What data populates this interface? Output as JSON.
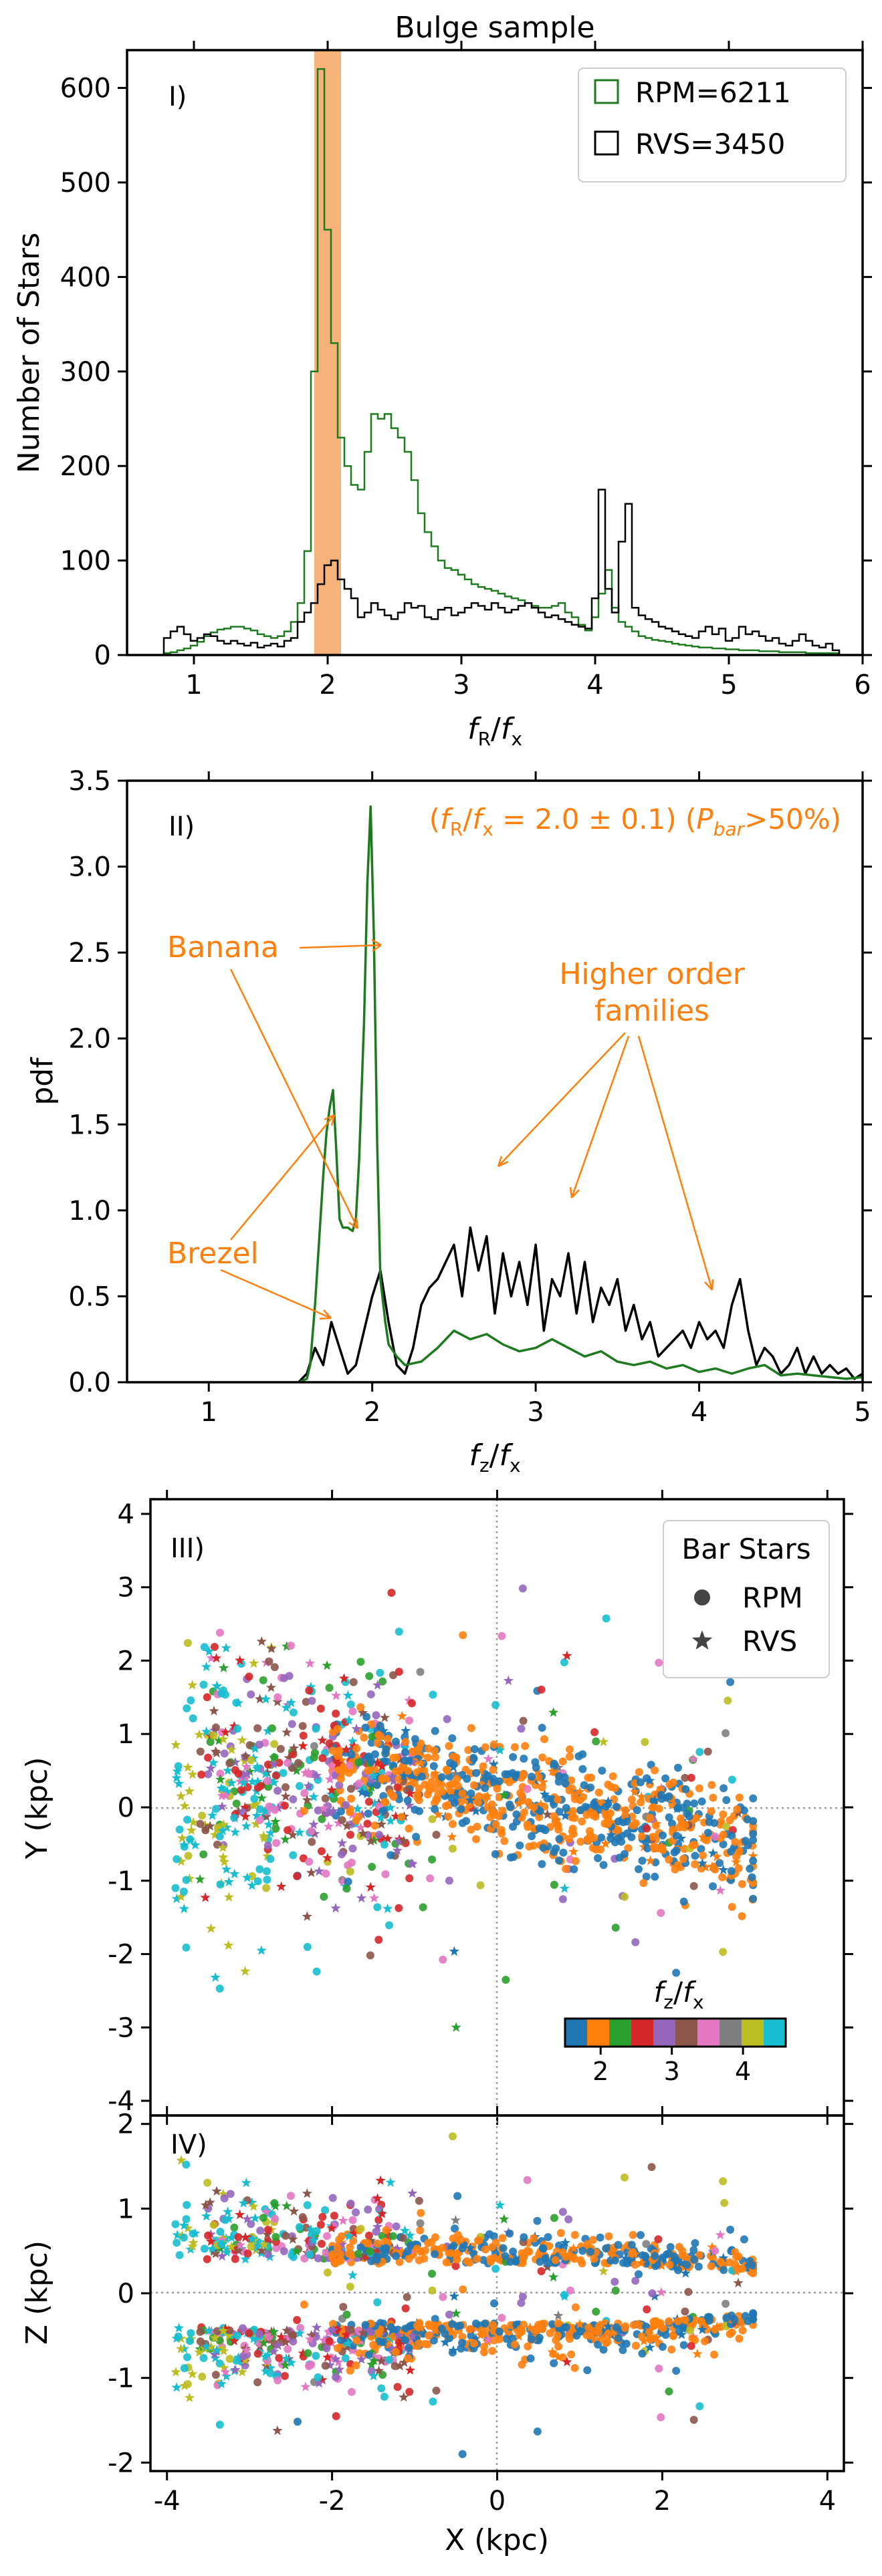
{
  "colors": {
    "rpm": "#1e7a1e",
    "rvs": "#000000",
    "highlight": "#f5a462",
    "annotation": "#ff7f0e",
    "tab10": [
      "#1f77b4",
      "#ff7f0e",
      "#2ca02c",
      "#d62728",
      "#9467bd",
      "#8c564b",
      "#e377c2",
      "#7f7f7f",
      "#bcbd22",
      "#17becf"
    ]
  },
  "chart_data": [
    {
      "id": "panel-1",
      "type": "step",
      "title": "Bulge sample",
      "panel_label": "I)",
      "xlabel": "f_R/f_x",
      "ylabel": "Number of Stars",
      "xlim": [
        0.5,
        6.0
      ],
      "ylim": [
        0,
        640
      ],
      "xticks": [
        1,
        2,
        3,
        4,
        5,
        6
      ],
      "yticks": [
        0,
        100,
        200,
        300,
        400,
        500,
        600
      ],
      "highlight_band": [
        1.9,
        2.1
      ],
      "legend": [
        {
          "label": "RPM=6211",
          "series": "rpm"
        },
        {
          "label": "RVS=3450",
          "series": "rvs"
        }
      ],
      "series": [
        {
          "name": "RPM=6211",
          "key": "rpm",
          "x": [
            0.8,
            0.85,
            0.9,
            0.95,
            1.0,
            1.05,
            1.1,
            1.15,
            1.2,
            1.25,
            1.3,
            1.35,
            1.4,
            1.45,
            1.5,
            1.55,
            1.6,
            1.65,
            1.7,
            1.75,
            1.8,
            1.85,
            1.9,
            1.95,
            2.0,
            2.05,
            2.1,
            2.15,
            2.2,
            2.25,
            2.3,
            2.35,
            2.4,
            2.45,
            2.5,
            2.55,
            2.6,
            2.65,
            2.7,
            2.75,
            2.8,
            2.85,
            2.9,
            2.95,
            3.0,
            3.05,
            3.1,
            3.15,
            3.2,
            3.25,
            3.3,
            3.35,
            3.4,
            3.45,
            3.5,
            3.55,
            3.6,
            3.65,
            3.7,
            3.75,
            3.8,
            3.85,
            3.9,
            3.95,
            4.0,
            4.05,
            4.1,
            4.15,
            4.2,
            4.25,
            4.3,
            4.35,
            4.4,
            4.45,
            4.5,
            4.55,
            4.6,
            4.65,
            4.7,
            4.75,
            4.8,
            4.85,
            4.9,
            4.95,
            5.0,
            5.05,
            5.1,
            5.15,
            5.2,
            5.25,
            5.3,
            5.35,
            5.4,
            5.45,
            5.5,
            5.55,
            5.6,
            5.65,
            5.7,
            5.75,
            5.8
          ],
          "values": [
            2,
            3,
            5,
            7,
            10,
            14,
            20,
            24,
            27,
            28,
            30,
            30,
            28,
            26,
            22,
            20,
            18,
            20,
            25,
            35,
            55,
            110,
            300,
            620,
            450,
            330,
            230,
            200,
            180,
            175,
            215,
            255,
            250,
            255,
            240,
            230,
            215,
            185,
            150,
            130,
            115,
            100,
            92,
            90,
            85,
            80,
            75,
            72,
            70,
            68,
            65,
            62,
            60,
            58,
            55,
            52,
            50,
            50,
            52,
            55,
            45,
            40,
            32,
            26,
            40,
            65,
            90,
            50,
            35,
            30,
            25,
            20,
            18,
            16,
            15,
            14,
            12,
            11,
            10,
            9,
            8,
            8,
            7,
            7,
            6,
            6,
            5,
            5,
            5,
            4,
            4,
            4,
            3,
            3,
            3,
            3,
            2,
            2,
            2,
            2,
            2
          ]
        },
        {
          "name": "RVS=3450",
          "key": "rvs",
          "x": [
            0.8,
            0.85,
            0.9,
            0.95,
            1.0,
            1.05,
            1.1,
            1.15,
            1.2,
            1.25,
            1.3,
            1.35,
            1.4,
            1.45,
            1.5,
            1.55,
            1.6,
            1.65,
            1.7,
            1.75,
            1.8,
            1.85,
            1.9,
            1.95,
            2.0,
            2.05,
            2.1,
            2.15,
            2.2,
            2.25,
            2.3,
            2.35,
            2.4,
            2.45,
            2.5,
            2.55,
            2.6,
            2.65,
            2.7,
            2.75,
            2.8,
            2.85,
            2.9,
            2.95,
            3.0,
            3.05,
            3.1,
            3.15,
            3.2,
            3.25,
            3.3,
            3.35,
            3.4,
            3.45,
            3.5,
            3.55,
            3.6,
            3.65,
            3.7,
            3.75,
            3.8,
            3.85,
            3.9,
            3.95,
            4.0,
            4.05,
            4.1,
            4.15,
            4.2,
            4.25,
            4.3,
            4.35,
            4.4,
            4.45,
            4.5,
            4.55,
            4.6,
            4.65,
            4.7,
            4.75,
            4.8,
            4.85,
            4.9,
            4.95,
            5.0,
            5.05,
            5.1,
            5.15,
            5.2,
            5.25,
            5.3,
            5.35,
            5.4,
            5.45,
            5.5,
            5.55,
            5.6,
            5.65,
            5.7,
            5.75,
            5.8
          ],
          "values": [
            18,
            25,
            30,
            22,
            15,
            18,
            22,
            20,
            15,
            12,
            15,
            12,
            10,
            13,
            8,
            10,
            12,
            9,
            15,
            18,
            35,
            45,
            55,
            75,
            95,
            100,
            80,
            70,
            60,
            40,
            45,
            55,
            48,
            42,
            38,
            45,
            55,
            50,
            52,
            40,
            38,
            48,
            50,
            42,
            45,
            50,
            55,
            52,
            48,
            55,
            50,
            45,
            48,
            52,
            55,
            50,
            45,
            40,
            42,
            38,
            35,
            32,
            30,
            28,
            60,
            175,
            70,
            45,
            120,
            160,
            50,
            42,
            38,
            35,
            30,
            28,
            25,
            22,
            20,
            18,
            25,
            30,
            22,
            28,
            15,
            18,
            30,
            22,
            25,
            20,
            15,
            18,
            12,
            10,
            15,
            22,
            15,
            10,
            8,
            12,
            5
          ]
        }
      ]
    },
    {
      "id": "panel-2",
      "type": "line",
      "panel_label": "II)",
      "xlabel": "f_z/f_x",
      "ylabel": "pdf",
      "xlim": [
        0.5,
        5.0
      ],
      "ylim": [
        0,
        3.5
      ],
      "xticks": [
        1,
        2,
        3,
        4,
        5
      ],
      "yticks": [
        0.0,
        0.5,
        1.0,
        1.5,
        2.0,
        2.5,
        3.0,
        3.5
      ],
      "condition_text": "(f_R/f_x = 2.0 ± 0.1) (P_bar>50%)",
      "annotations": [
        {
          "text": "Banana",
          "lines": [
            "Banana"
          ]
        },
        {
          "text": "Brezel",
          "lines": [
            "Brezel"
          ]
        },
        {
          "text": "Higher order families",
          "lines": [
            "Higher order",
            "families"
          ]
        }
      ],
      "series": [
        {
          "name": "RPM",
          "key": "rpm",
          "x": [
            1.55,
            1.6,
            1.62,
            1.65,
            1.68,
            1.7,
            1.72,
            1.74,
            1.76,
            1.78,
            1.8,
            1.82,
            1.85,
            1.88,
            1.9,
            1.92,
            1.95,
            1.97,
            1.99,
            2.01,
            2.03,
            2.05,
            2.08,
            2.1,
            2.15,
            2.2,
            2.3,
            2.4,
            2.5,
            2.6,
            2.7,
            2.8,
            2.9,
            3.0,
            3.1,
            3.2,
            3.3,
            3.4,
            3.5,
            3.6,
            3.7,
            3.8,
            3.9,
            4.0,
            4.1,
            4.2,
            4.3,
            4.4,
            4.5,
            4.6,
            4.7,
            4.8,
            4.9,
            5.0
          ],
          "values": [
            0,
            0.02,
            0.1,
            0.45,
            0.9,
            1.2,
            1.45,
            1.6,
            1.7,
            1.35,
            0.95,
            0.9,
            0.9,
            0.88,
            0.95,
            1.3,
            2.1,
            2.9,
            3.35,
            2.6,
            1.4,
            0.6,
            0.35,
            0.22,
            0.15,
            0.1,
            0.12,
            0.2,
            0.3,
            0.25,
            0.28,
            0.22,
            0.18,
            0.2,
            0.25,
            0.2,
            0.15,
            0.18,
            0.12,
            0.1,
            0.12,
            0.08,
            0.1,
            0.06,
            0.08,
            0.05,
            0.08,
            0.1,
            0.04,
            0.05,
            0.04,
            0.03,
            0.02,
            0.03
          ]
        },
        {
          "name": "RVS",
          "key": "rvs",
          "x": [
            1.55,
            1.6,
            1.65,
            1.7,
            1.75,
            1.8,
            1.85,
            1.9,
            1.95,
            2.0,
            2.05,
            2.1,
            2.15,
            2.2,
            2.25,
            2.3,
            2.35,
            2.4,
            2.45,
            2.5,
            2.55,
            2.6,
            2.65,
            2.7,
            2.75,
            2.8,
            2.85,
            2.9,
            2.95,
            3.0,
            3.05,
            3.1,
            3.15,
            3.2,
            3.25,
            3.3,
            3.35,
            3.4,
            3.45,
            3.5,
            3.55,
            3.6,
            3.65,
            3.7,
            3.75,
            3.8,
            3.85,
            3.9,
            3.95,
            4.0,
            4.05,
            4.1,
            4.15,
            4.2,
            4.25,
            4.3,
            4.35,
            4.4,
            4.45,
            4.5,
            4.55,
            4.6,
            4.65,
            4.7,
            4.75,
            4.8,
            4.85,
            4.9,
            4.95,
            5.0
          ],
          "values": [
            0,
            0.05,
            0.2,
            0.1,
            0.35,
            0.2,
            0.05,
            0.1,
            0.3,
            0.5,
            0.65,
            0.35,
            0.1,
            0.05,
            0.2,
            0.45,
            0.55,
            0.6,
            0.7,
            0.8,
            0.5,
            0.9,
            0.65,
            0.85,
            0.4,
            0.75,
            0.5,
            0.7,
            0.45,
            0.8,
            0.3,
            0.6,
            0.5,
            0.75,
            0.4,
            0.7,
            0.35,
            0.55,
            0.45,
            0.6,
            0.3,
            0.45,
            0.25,
            0.35,
            0.15,
            0.2,
            0.25,
            0.3,
            0.2,
            0.35,
            0.25,
            0.3,
            0.2,
            0.45,
            0.6,
            0.3,
            0.1,
            0.2,
            0.15,
            0.05,
            0.1,
            0.2,
            0.05,
            0.15,
            0.05,
            0.1,
            0.05,
            0.08,
            0.02,
            0.05
          ]
        }
      ]
    },
    {
      "id": "panel-3",
      "type": "scatter",
      "panel_label": "III)",
      "xlabel": "",
      "ylabel": "Y (kpc)",
      "xlim": [
        -4.2,
        4.2
      ],
      "ylim": [
        -4.2,
        4.2
      ],
      "yticks": [
        -4,
        -3,
        -2,
        -1,
        0,
        1,
        2,
        3,
        4
      ],
      "legend_title": "Bar Stars",
      "legend": [
        {
          "label": "RPM",
          "marker": "circle"
        },
        {
          "label": "RVS",
          "marker": "star"
        }
      ],
      "colorbar": {
        "label": "f_z/f_x",
        "ticks": [
          2,
          3,
          4
        ],
        "range": [
          1.5,
          4.6
        ]
      }
    },
    {
      "id": "panel-4",
      "type": "scatter",
      "panel_label": "IV)",
      "xlabel": "X (kpc)",
      "ylabel": "Z (kpc)",
      "xlim": [
        -4.2,
        4.2
      ],
      "ylim": [
        -2.1,
        2.1
      ],
      "xticks": [
        -4,
        -2,
        0,
        2,
        4
      ],
      "yticks": [
        -2,
        -1,
        0,
        1,
        2
      ]
    }
  ]
}
